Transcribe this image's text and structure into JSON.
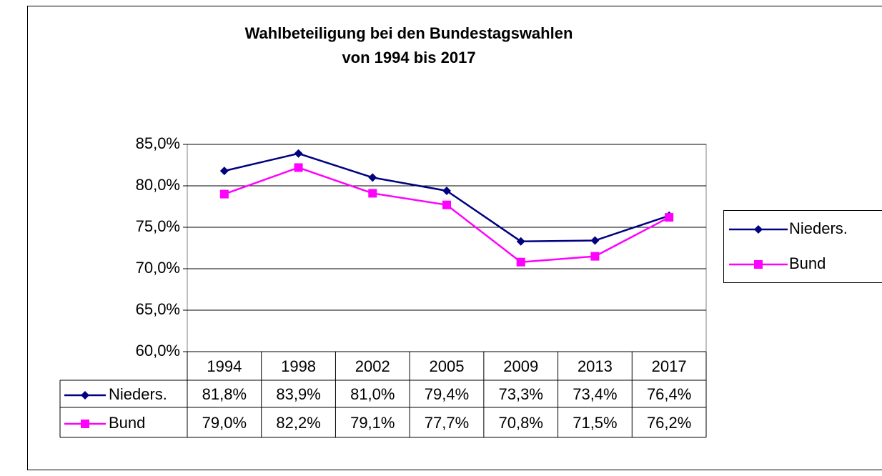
{
  "chart_data": {
    "type": "line",
    "title": "Wahlbeteiligung bei den Bundestagswahlen",
    "subtitle": "von 1994 bis 2017",
    "categories": [
      "1994",
      "1998",
      "2002",
      "2005",
      "2009",
      "2013",
      "2017"
    ],
    "series": [
      {
        "name": "Nieders.",
        "color": "#000080",
        "marker": "diamond",
        "values": [
          81.8,
          83.9,
          81.0,
          79.4,
          73.3,
          73.4,
          76.4
        ],
        "value_labels": [
          "81,8%",
          "83,9%",
          "81,0%",
          "79,4%",
          "73,3%",
          "73,4%",
          "76,4%"
        ]
      },
      {
        "name": "Bund",
        "color": "#ff00ff",
        "marker": "square",
        "values": [
          79.0,
          82.2,
          79.1,
          77.7,
          70.8,
          71.5,
          76.2
        ],
        "value_labels": [
          "79,0%",
          "82,2%",
          "79,1%",
          "77,7%",
          "70,8%",
          "71,5%",
          "76,2%"
        ]
      }
    ],
    "ylim": [
      60,
      85
    ],
    "yticks": [
      {
        "value": 60,
        "label": "60,0%"
      },
      {
        "value": 65,
        "label": "65,0%"
      },
      {
        "value": 70,
        "label": "70,0%"
      },
      {
        "value": 75,
        "label": "75,0%"
      },
      {
        "value": 80,
        "label": "80,0%"
      },
      {
        "value": 85,
        "label": "85,0%"
      }
    ],
    "grid": true,
    "legend": "right"
  }
}
